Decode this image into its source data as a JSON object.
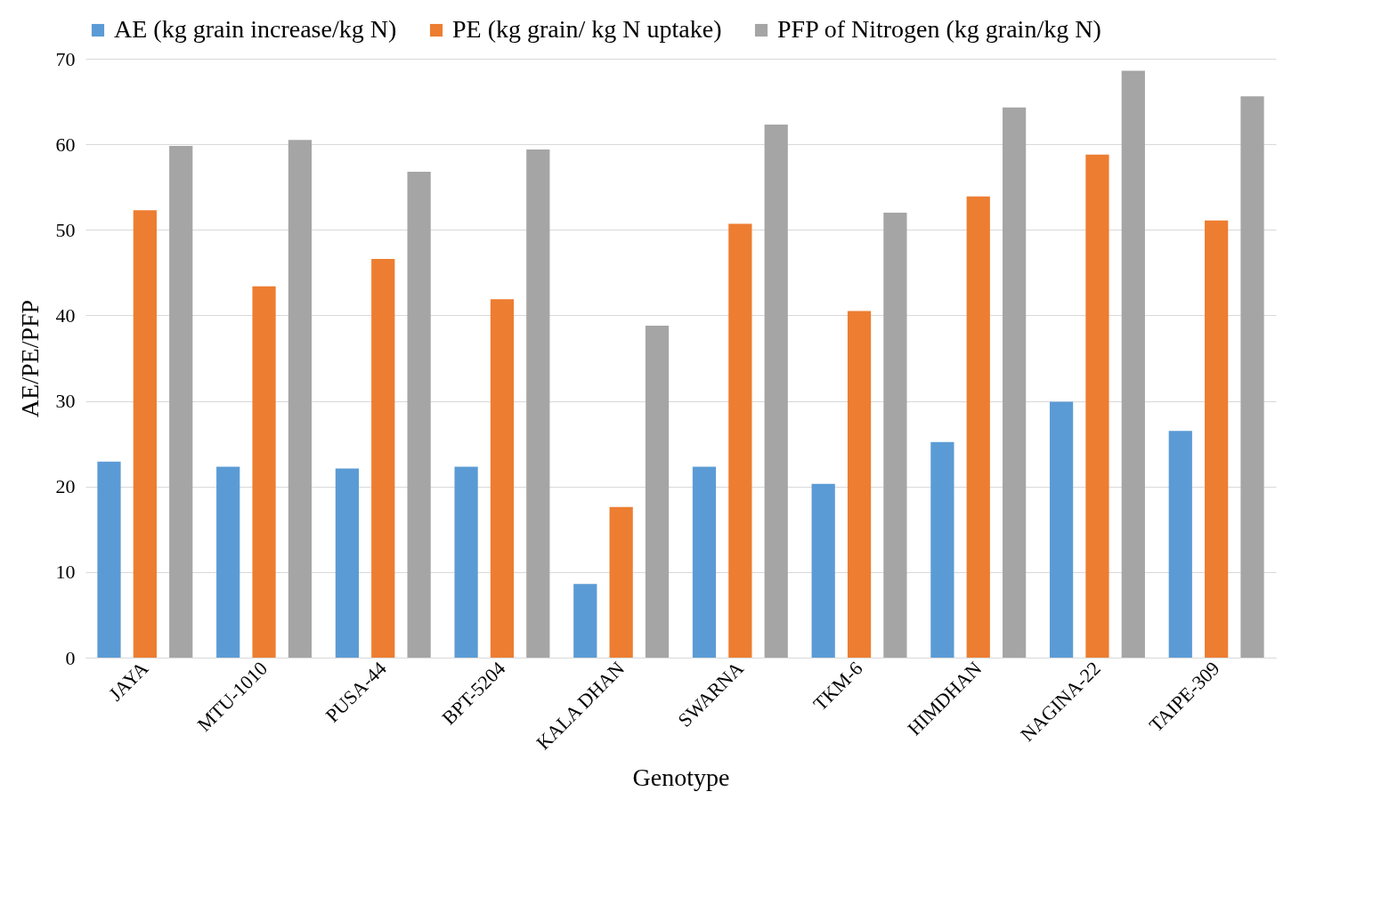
{
  "chart_data": {
    "type": "bar",
    "xlabel": "Genotype",
    "ylabel": "AE/PE/PFP",
    "categories": [
      "JAYA",
      "MTU-1010",
      "PUSA-44",
      "BPT-5204",
      "KALA DHAN",
      "SWARNA",
      "TKM-6",
      "HIMDHAN",
      "NAGINA-22",
      "TAIPE-309"
    ],
    "series": [
      {
        "name": "AE (kg grain increase/kg N)",
        "color": "#5b9bd5",
        "values": [
          22.9,
          22.3,
          22.1,
          22.3,
          8.6,
          22.3,
          20.3,
          25.2,
          29.9,
          26.5
        ]
      },
      {
        "name": "PE (kg grain/ kg N uptake)",
        "color": "#ed7d31",
        "values": [
          52.3,
          43.4,
          46.6,
          41.9,
          17.6,
          50.7,
          40.5,
          53.9,
          58.8,
          51.1
        ]
      },
      {
        "name": "PFP of Nitrogen (kg grain/kg N)",
        "color": "#a5a5a5",
        "values": [
          59.8,
          60.5,
          56.8,
          59.4,
          38.8,
          62.3,
          52.0,
          64.3,
          68.6,
          65.6
        ]
      }
    ],
    "ylim": [
      0,
      70
    ],
    "yticks": [
      0,
      10,
      20,
      30,
      40,
      50,
      60,
      70
    ],
    "grid": "y",
    "legend": "top"
  }
}
